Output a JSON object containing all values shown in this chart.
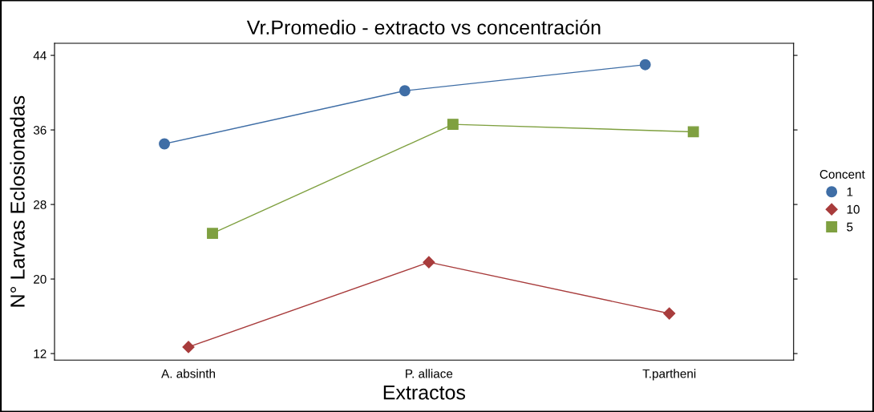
{
  "chart_data": {
    "type": "line",
    "title": "Vr.Promedio - extracto vs concentración",
    "xlabel": "Extractos",
    "ylabel": "N° Larvas Eclosionadas",
    "legend_title": "Concent",
    "categories": [
      "A. absinth",
      "P. alliace",
      "T.partheni"
    ],
    "series": [
      {
        "name": "1",
        "color": "#3f6ea6",
        "marker": "circle",
        "values": [
          34.5,
          40.2,
          43.0
        ]
      },
      {
        "name": "10",
        "color": "#a83c3c",
        "marker": "diamond",
        "values": [
          12.7,
          21.8,
          16.3
        ]
      },
      {
        "name": "5",
        "color": "#7fa040",
        "marker": "square",
        "values": [
          24.9,
          36.6,
          35.8
        ]
      }
    ],
    "ylim": [
      11.3,
      45.3
    ],
    "yticks": [
      12,
      20,
      28,
      36,
      44
    ],
    "grid": false,
    "legend": "right",
    "line_style": "solid"
  }
}
